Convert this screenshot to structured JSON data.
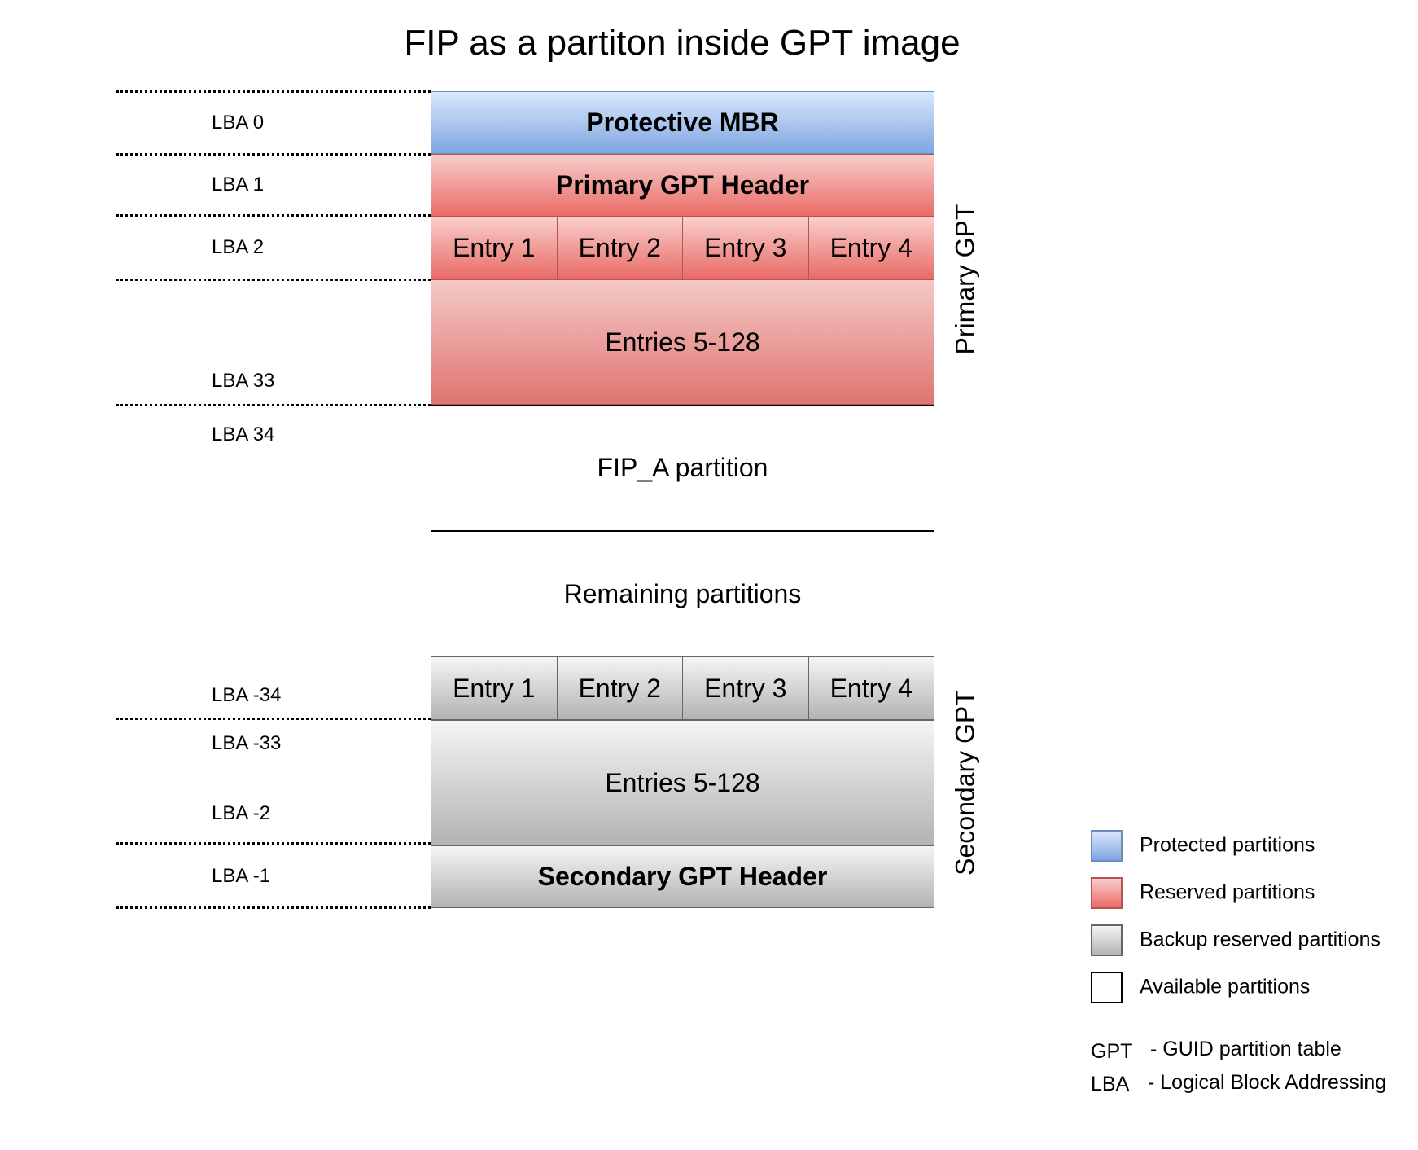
{
  "title": "FIP as a partiton inside GPT image",
  "lba_labels": [
    "LBA 0",
    "LBA 1",
    "LBA 2",
    "LBA 33",
    "LBA 34",
    "LBA -34",
    "LBA -33",
    "LBA -2",
    "LBA -1"
  ],
  "blocks": {
    "protective_mbr": "Protective MBR",
    "primary_header": "Primary GPT Header",
    "primary_entries": [
      "Entry 1",
      "Entry 2",
      "Entry 3",
      "Entry 4"
    ],
    "primary_rest": "Entries 5-128",
    "fip_a": "FIP_A partition",
    "remaining": "Remaining partitions",
    "secondary_entries": [
      "Entry 1",
      "Entry 2",
      "Entry 3",
      "Entry 4"
    ],
    "secondary_rest": "Entries 5-128",
    "secondary_header": "Secondary GPT Header"
  },
  "group_labels": {
    "primary": "Primary GPT",
    "secondary": "Secondary GPT"
  },
  "legend": [
    {
      "label": "Protected partitions",
      "color": "#7ea6e0"
    },
    {
      "label": "Reserved partitions",
      "color": "#ea6b66"
    },
    {
      "label": "Backup reserved partitions",
      "color": "#b3b3b3"
    },
    {
      "label": "Available partitions",
      "color": "#ffffff"
    }
  ],
  "abbreviations": [
    {
      "term": "GPT",
      "definition": "- GUID partition table"
    },
    {
      "term": "LBA",
      "definition": "- Logical Block Addressing"
    }
  ]
}
